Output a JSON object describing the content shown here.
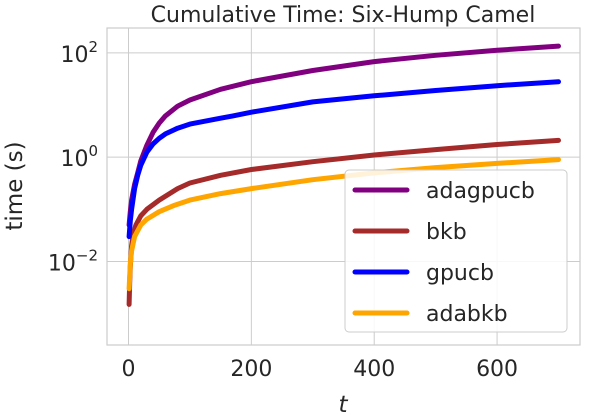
{
  "chart_data": {
    "type": "line",
    "title": "Cumulative Time: Six-Hump Camel",
    "xlabel": "t",
    "ylabel": "time (s)",
    "yscale": "log",
    "xlim": [
      -35,
      735
    ],
    "ylim": [
      0.00025,
      300
    ],
    "xticks": [
      0,
      200,
      400,
      600
    ],
    "xtick_labels": [
      "0",
      "200",
      "400",
      "600"
    ],
    "yticks": [
      0.01,
      1,
      100
    ],
    "ytick_labels": [
      {
        "base": "10",
        "exp": "−2"
      },
      {
        "base": "10",
        "exp": "0"
      },
      {
        "base": "10",
        "exp": "2"
      }
    ],
    "grid": true,
    "legend_position": "lower-right",
    "series": [
      {
        "name": "adagpucb",
        "color": "#800080",
        "x": [
          1,
          3,
          5,
          10,
          15,
          20,
          30,
          40,
          50,
          60,
          80,
          100,
          150,
          200,
          300,
          400,
          500,
          600,
          700
        ],
        "y": [
          0.05,
          0.09,
          0.15,
          0.3,
          0.5,
          0.85,
          1.7,
          3.0,
          4.5,
          6.2,
          9.5,
          12.5,
          20,
          28,
          46,
          68,
          90,
          112,
          135
        ]
      },
      {
        "name": "bkb",
        "color": "#a52a2a",
        "x": [
          1,
          2,
          3,
          5,
          8,
          12,
          20,
          30,
          50,
          80,
          100,
          150,
          200,
          300,
          400,
          500,
          600,
          700
        ],
        "y": [
          0.0015,
          0.004,
          0.008,
          0.02,
          0.035,
          0.05,
          0.075,
          0.1,
          0.15,
          0.25,
          0.32,
          0.45,
          0.58,
          0.82,
          1.1,
          1.4,
          1.75,
          2.1
        ]
      },
      {
        "name": "gpucb",
        "color": "#0000ff",
        "x": [
          1,
          3,
          5,
          10,
          15,
          20,
          30,
          40,
          50,
          60,
          80,
          100,
          150,
          170,
          200,
          300,
          400,
          500,
          600,
          700
        ],
        "y": [
          0.03,
          0.06,
          0.1,
          0.25,
          0.45,
          0.7,
          1.25,
          1.8,
          2.3,
          2.8,
          3.6,
          4.3,
          5.6,
          6.2,
          7.3,
          11.5,
          15,
          19,
          23.5,
          28
        ]
      },
      {
        "name": "adabkb",
        "color": "#ffa500",
        "x": [
          1,
          3,
          5,
          10,
          20,
          30,
          50,
          75,
          100,
          150,
          200,
          300,
          400,
          500,
          600,
          700
        ],
        "y": [
          0.003,
          0.009,
          0.016,
          0.03,
          0.05,
          0.065,
          0.09,
          0.12,
          0.15,
          0.2,
          0.25,
          0.37,
          0.5,
          0.63,
          0.76,
          0.9
        ]
      }
    ]
  }
}
